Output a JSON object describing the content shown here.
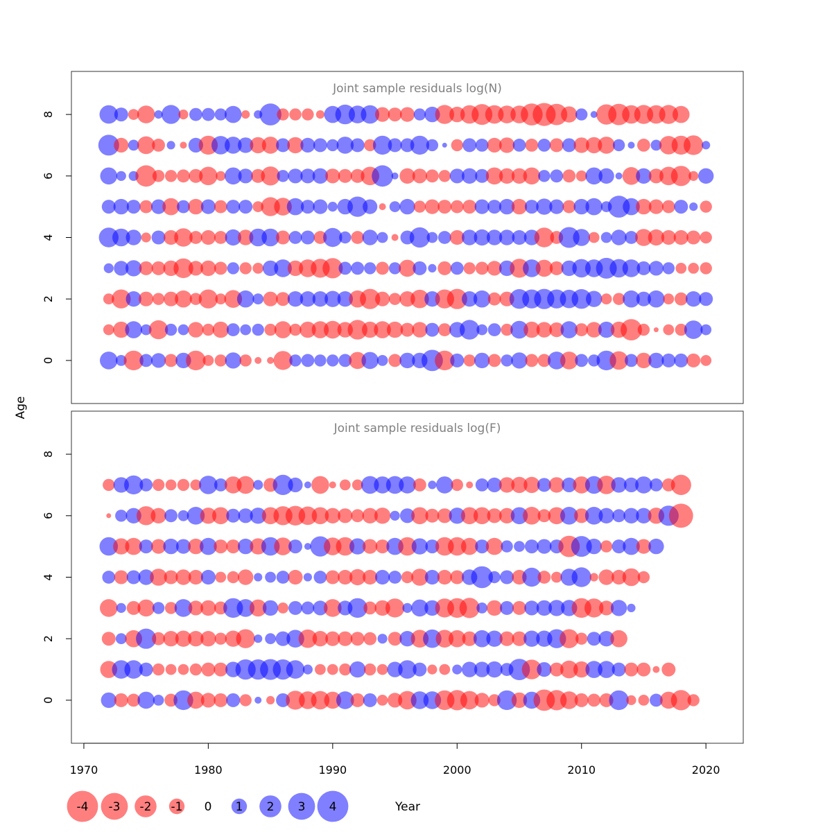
{
  "chart_data": {
    "type": "scatter",
    "xlabel": "Year",
    "ylabel": "Age",
    "xlim": [
      1969,
      2023
    ],
    "x_ticks": [
      1970,
      1980,
      1990,
      2000,
      2010,
      2020
    ],
    "y_ticks": [
      0,
      2,
      4,
      6,
      8
    ],
    "ylim": [
      -1.4,
      9.4
    ],
    "colors": {
      "positive": "#0000FF",
      "negative": "#FF0000",
      "alpha": 0.5
    },
    "legend": {
      "values": [
        -4,
        -3,
        -2,
        -1,
        0,
        1,
        2,
        3,
        4
      ],
      "labels": [
        "-4",
        "-3",
        "-2",
        "-1",
        "0",
        "1",
        "2",
        "3",
        "4"
      ]
    },
    "years": [
      1972,
      1973,
      1974,
      1975,
      1976,
      1977,
      1978,
      1979,
      1980,
      1981,
      1982,
      1983,
      1984,
      1985,
      1986,
      1987,
      1988,
      1989,
      1990,
      1991,
      1992,
      1993,
      1994,
      1995,
      1996,
      1997,
      1998,
      1999,
      2000,
      2001,
      2002,
      2003,
      2004,
      2005,
      2006,
      2007,
      2008,
      2009,
      2010,
      2011,
      2012,
      2013,
      2014,
      2015,
      2016,
      2017,
      2018,
      2019,
      2020
    ],
    "panels": [
      {
        "title": "Joint sample residuals log(N)",
        "ages": [
          0,
          1,
          2,
          3,
          4,
          5,
          6,
          7,
          8
        ],
        "residuals": [
          [
            1.3,
            0.5,
            -1.6,
            0.7,
            0.9,
            -0.7,
            1.0,
            -1.6,
            -0.5,
            -0.6,
            1.1,
            -0.6,
            -0.2,
            -0.2,
            -1.5,
            0.6,
            0.7,
            0.6,
            0.6,
            0.7,
            -1.2,
            1.2,
            0.5,
            -0.7,
            1.0,
            1.0,
            1.9,
            -1.6,
            0.8,
            -0.6,
            1.0,
            -0.7,
            0.6,
            1.1,
            -0.7,
            -0.7,
            1.3,
            -1.3,
            0.7,
            0.6,
            1.6,
            -1.4,
            0.7,
            -1.0,
            1.0,
            0.8,
            0.8,
            -0.8,
            -0.5
          ],
          [
            -0.5,
            -1.1,
            1.2,
            0.5,
            -1.5,
            0.6,
            0.5,
            -1.0,
            -0.6,
            -1.1,
            0.7,
            0.5,
            0.6,
            -0.6,
            -1.2,
            -0.6,
            -1.1,
            -1.2,
            -1.3,
            -1.0,
            -1.6,
            -1.1,
            -1.2,
            -1.1,
            -0.8,
            -1.0,
            0.8,
            -0.7,
            1.0,
            1.6,
            0.5,
            0.7,
            -0.6,
            1.3,
            -1.1,
            -1.0,
            -0.9,
            1.2,
            -0.7,
            -1.0,
            1.1,
            -1.1,
            -1.9,
            -0.6,
            -0.1,
            -0.5,
            -0.6,
            1.4,
            0.5
          ],
          [
            -0.5,
            -1.5,
            1.0,
            -0.9,
            -0.6,
            -0.9,
            -1.2,
            -0.6,
            -1.5,
            -0.5,
            -1.3,
            1.2,
            0.5,
            -0.9,
            -0.8,
            1.0,
            1.0,
            1.0,
            1.1,
            1.0,
            -1.2,
            -1.7,
            -0.9,
            -0.6,
            -1.0,
            -1.4,
            1.0,
            -1.5,
            -1.7,
            1.0,
            1.2,
            -0.7,
            -0.9,
            1.6,
            1.5,
            1.7,
            1.5,
            1.4,
            1.6,
            1.1,
            -0.5,
            -0.6,
            1.2,
            0.9,
            1.2,
            -0.5,
            -0.7,
            1.0,
            0.8
          ],
          [
            0.4,
            0.9,
            1.1,
            -0.8,
            -0.8,
            -1.0,
            -1.6,
            -0.9,
            -1.0,
            -0.7,
            0.6,
            -0.6,
            -0.5,
            1.0,
            1.3,
            -1.0,
            -1.3,
            -1.5,
            -1.7,
            0.7,
            0.7,
            0.6,
            -0.7,
            0.6,
            -1.2,
            0.8,
            0.3,
            -0.8,
            0.7,
            -0.6,
            -0.7,
            -0.9,
            1.0,
            -1.5,
            1.3,
            -1.2,
            -0.8,
            1.0,
            1.4,
            1.3,
            1.8,
            1.4,
            1.3,
            0.8,
            0.9,
            0.6,
            -0.5,
            -0.5,
            -0.6
          ],
          [
            1.6,
            1.3,
            1.0,
            -0.4,
            0.8,
            -0.9,
            -1.4,
            -0.7,
            -0.9,
            -0.7,
            1.1,
            -1.0,
            1.3,
            1.3,
            -0.8,
            0.7,
            0.8,
            -0.7,
            1.5,
            0.6,
            -0.7,
            1.0,
            0.5,
            -0.2,
            0.8,
            1.7,
            0.5,
            0.7,
            -0.9,
            1.0,
            1.1,
            1.0,
            1.0,
            0.9,
            1.0,
            -1.6,
            -0.7,
            1.8,
            1.2,
            -0.5,
            0.5,
            1.0,
            0.7,
            -1.2,
            -1.1,
            -0.9,
            -0.9,
            -0.8,
            -0.6
          ],
          [
            0.8,
            1.0,
            0.8,
            -0.7,
            0.9,
            -1.2,
            0.7,
            -1.0,
            0.9,
            -0.7,
            0.8,
            0.8,
            -0.5,
            -1.5,
            -1.3,
            1.2,
            0.8,
            0.9,
            0.4,
            1.0,
            1.7,
            0.9,
            -0.2,
            0.5,
            1.0,
            -0.6,
            -0.9,
            -0.8,
            -0.7,
            -0.8,
            0.9,
            0.8,
            1.0,
            -1.0,
            0.8,
            1.1,
            0.9,
            -0.7,
            1.0,
            1.2,
            0.5,
            2.0,
            1.2,
            -1.0,
            -0.9,
            -0.7,
            0.8,
            0.3,
            -0.6
          ],
          [
            1.2,
            0.4,
            0.4,
            -1.9,
            -0.6,
            -0.6,
            -0.7,
            -0.8,
            -1.4,
            -0.4,
            1.2,
            0.9,
            -0.8,
            -1.5,
            0.6,
            0.9,
            0.9,
            1.0,
            -0.9,
            -0.8,
            -0.8,
            -1.4,
            1.9,
            0.2,
            -1.0,
            -0.9,
            -0.7,
            -0.6,
            0.9,
            1.0,
            0.8,
            -1.2,
            -1.0,
            -1.0,
            -1.2,
            0.6,
            0.7,
            -0.7,
            -0.5,
            1.2,
            1.0,
            0.2,
            -1.3,
            1.0,
            -0.9,
            -1.4,
            -1.7,
            -0.4,
            1.0
          ],
          [
            1.8,
            -0.9,
            0.5,
            -1.3,
            -0.7,
            0.3,
            -0.2,
            0.9,
            -1.5,
            1.4,
            1.2,
            1.0,
            -1.1,
            -1.2,
            0.8,
            -1.1,
            0.9,
            0.8,
            0.6,
            1.2,
            0.8,
            -0.6,
            1.5,
            0.8,
            0.8,
            1.5,
            0.6,
            0.1,
            -0.6,
            0.8,
            0.7,
            -0.9,
            -1.0,
            0.7,
            -0.7,
            0.7,
            -0.8,
            0.8,
            -1.0,
            -1.1,
            -1.2,
            0.6,
            0.2,
            -0.7,
            0.5,
            -1.4,
            -1.5,
            -1.6,
            0.3
          ],
          [
            1.4,
            0.8,
            -0.5,
            -1.3,
            0.3,
            1.5,
            -0.4,
            0.7,
            0.7,
            0.6,
            1.2,
            -0.3,
            0.3,
            2.0,
            -0.6,
            -0.6,
            -0.6,
            -0.3,
            1.2,
            1.6,
            1.3,
            1.4,
            -0.9,
            -0.8,
            -0.9,
            0.6,
            1.0,
            -1.5,
            -1.0,
            -1.4,
            -1.8,
            -1.4,
            -1.3,
            -1.3,
            -2.0,
            -2.2,
            -1.9,
            -1.1,
            0.6,
            0.2,
            -1.7,
            -1.9,
            -1.4,
            -1.5,
            -1.4,
            -1.5,
            -1.2
          ]
        ]
      },
      {
        "title": "Joint sample residuals log(F)",
        "ages": [
          0,
          1,
          2,
          3,
          4,
          5,
          6,
          7
        ],
        "residuals": [
          [
            1.0,
            -0.8,
            -0.7,
            1.2,
            0.5,
            -0.7,
            1.6,
            -1.2,
            -0.9,
            -0.8,
            0.8,
            -0.6,
            0.2,
            -0.3,
            0.8,
            -1.5,
            -1.3,
            -1.4,
            -1.2,
            1.3,
            -0.8,
            0.8,
            -0.5,
            -0.9,
            -1.4,
            1.3,
            1.3,
            -1.6,
            -1.7,
            -1.4,
            -0.9,
            -0.6,
            1.6,
            -1.0,
            1.2,
            -1.9,
            -1.7,
            -1.3,
            -0.8,
            -0.7,
            -0.8,
            1.6,
            -0.4,
            -0.5,
            0.7,
            -1.2,
            -1.7,
            -0.6
          ],
          [
            -1.2,
            1.4,
            1.4,
            0.8,
            -0.6,
            -0.5,
            -0.5,
            -0.6,
            -0.8,
            -0.8,
            1.0,
            1.7,
            1.7,
            1.8,
            1.7,
            1.4,
            0.4,
            -0.5,
            -0.5,
            -0.6,
            1.1,
            -0.6,
            -0.5,
            1.0,
            1.4,
            0.8,
            -0.4,
            -0.5,
            0.4,
            1.0,
            1.0,
            1.1,
            0.7,
            1.9,
            -1.6,
            0.9,
            -0.8,
            -1.3,
            -1.1,
            1.2,
            1.2,
            0.8,
            -0.8,
            -0.8,
            -0.2,
            -0.8
          ],
          [
            -0.8,
            0.5,
            -1.2,
            1.7,
            -0.7,
            -1.0,
            -1.1,
            -1.0,
            -1.0,
            -0.6,
            -1.1,
            -1.5,
            0.3,
            0.5,
            0.9,
            1.3,
            -1.4,
            -1.0,
            -0.9,
            -0.9,
            -0.8,
            -0.7,
            0.4,
            -0.8,
            1.0,
            -1.3,
            1.4,
            -1.3,
            -1.2,
            -0.9,
            1.2,
            1.1,
            -0.9,
            -0.9,
            1.1,
            1.1,
            1.5,
            -1.5,
            -0.6,
            0.8,
            1.0,
            -1.2
          ],
          [
            -1.3,
            0.4,
            -0.8,
            -1.2,
            0.6,
            -0.6,
            1.3,
            -0.9,
            -1.0,
            -0.7,
            1.6,
            1.3,
            -1.2,
            1.0,
            -0.5,
            0.8,
            0.7,
            0.9,
            -1.3,
            0.9,
            1.6,
            -0.7,
            -1.0,
            -1.5,
            0.4,
            1.2,
            1.0,
            -1.5,
            -1.6,
            -1.7,
            0.5,
            -1.0,
            0.8,
            -0.8,
            0.9,
            1.0,
            1.1,
            1.1,
            -1.6,
            -1.5,
            -0.9,
            1.1,
            0.3
          ],
          [
            0.7,
            -0.8,
            0.8,
            1.0,
            -1.2,
            -0.8,
            -1.0,
            -0.9,
            0.9,
            -0.5,
            -0.6,
            -1.0,
            0.3,
            0.5,
            0.7,
            -0.9,
            0.3,
            0.7,
            -0.8,
            -0.9,
            -1.1,
            -0.9,
            0.9,
            0.7,
            -0.6,
            -1.2,
            0.9,
            -0.9,
            -0.8,
            1.0,
            2.0,
            0.6,
            0.8,
            -0.9,
            1.5,
            -0.7,
            -0.5,
            1.2,
            1.6,
            -0.3,
            -1.0,
            -0.9,
            -1.3,
            -0.6
          ],
          [
            1.4,
            -1.1,
            -1.2,
            0.8,
            -0.9,
            1.0,
            0.9,
            -1.0,
            1.2,
            -0.8,
            -0.8,
            1.0,
            -1.1,
            1.4,
            -1.3,
            0.8,
            0.2,
            1.7,
            -1.3,
            -1.4,
            1.1,
            -0.9,
            -0.8,
            1.2,
            -1.4,
            1.1,
            0.8,
            -1.4,
            -1.4,
            -1.2,
            0.8,
            -1.2,
            0.6,
            0.5,
            0.8,
            0.9,
            0.8,
            -1.9,
            1.8,
            1.0,
            -0.6,
            0.8,
            1.2,
            -0.9,
            1.0
          ],
          [
            -0.1,
            0.6,
            1.0,
            -1.5,
            -1.0,
            0.7,
            0.5,
            1.3,
            -1.1,
            -1.2,
            0.8,
            0.9,
            1.1,
            -1.2,
            -1.5,
            -1.6,
            -1.4,
            -1.2,
            -1.0,
            -0.9,
            -0.7,
            -1.0,
            -1.1,
            0.4,
            0.9,
            -1.2,
            -0.8,
            -0.9,
            1.1,
            -1.2,
            -1.2,
            -0.9,
            -1.0,
            1.2,
            -1.3,
            -0.7,
            -1.2,
            1.3,
            -0.9,
            1.3,
            1.0,
            0.7,
            1.0,
            1.0,
            -1.1,
            1.7,
            -2.4
          ],
          [
            -0.6,
            1.0,
            1.5,
            0.7,
            -0.6,
            -0.5,
            -0.6,
            -0.5,
            1.4,
            0.7,
            -1.2,
            -1.3,
            0.4,
            -0.8,
            1.7,
            0.9,
            0.2,
            -1.3,
            -0.2,
            -0.5,
            -0.5,
            1.3,
            1.2,
            1.3,
            1.2,
            -0.7,
            0.3,
            1.2,
            -0.6,
            -0.2,
            0.7,
            0.9,
            -1.0,
            -1.1,
            -1.1,
            0.8,
            -1.0,
            0.9,
            -1.2,
            1.3,
            -1.4,
            1.0,
            0.9,
            1.2,
            0.7,
            -0.7,
            -1.7
          ]
        ]
      }
    ]
  }
}
